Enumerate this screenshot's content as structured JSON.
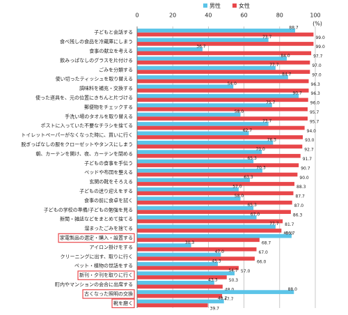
{
  "chart_data": {
    "type": "hbar",
    "unit_label": "(%)",
    "categories": [
      "子どもと会話する",
      "食べ残しの食品を冷蔵庫にしまう",
      "食事の献立を考える",
      "飲みっぱなしのグラスを片付ける",
      "ごみを分類する",
      "使い切ったティッシュを取り替える",
      "調味料を補充・交換する",
      "使った道具を、元の位置にきちんと片づける",
      "郵便物をチェックする",
      "手洗い場のタオルを取り替える",
      "ポストに入っていた不要なチラシを捨てる",
      "トイレットペーパーがなくなった時に、買いに行く",
      "脱ぎっぱなしの服をクローゼットやタンスにしまう",
      "朝、カーテンを開け、夜、カーテンを閉める",
      "子どもの食事を手伝う",
      "ベッドや布団を整える",
      "玄関の靴をそろえる",
      "子どもの送り迎えをする",
      "食事の前に食卓を拭く",
      "子どもの学校の準備/子どもの勉強を見る",
      "新聞・雑誌などをまとめて捨てる",
      "溜まったごみを捨てる",
      "家電製品の選定・購入・設置する",
      "アイロン掛けをする",
      "クリーニングに出す、取りに行く",
      "ペット・植物の世話をする",
      "新刊・夕刊を取りに行く",
      "町内やマンションの会合に出席する",
      "古くなった照明の交換",
      "靴を磨く"
    ],
    "highlighted_categories": [
      22,
      26,
      28,
      29
    ],
    "highlight_color": "#e8474a",
    "series": [
      {
        "name": "男性",
        "color": "#5bc4e8",
        "values": [
          88.7,
          73.7,
          36.7,
          84.0,
          77.7,
          84.7,
          54.0,
          90.7,
          75.7,
          58.0,
          73.7,
          62.7,
          76.3,
          70.0,
          65.3,
          70.3,
          63.3,
          57.0,
          58.0,
          65.3,
          67.0,
          77.7,
          86.7,
          30.3,
          47.0,
          45.3,
          54.7,
          43.3,
          88.0,
          48.7
        ],
        "value_labels": [
          "88.7",
          "73.7",
          "36.7",
          "84.0",
          "77.7",
          "84.7",
          "54.0",
          "90.7",
          "75.7",
          "58.0",
          "73.7",
          "62.7",
          "76.3",
          "70.0",
          "65.3",
          "70.3",
          "63.3",
          "57.0",
          "58.0",
          "65.3",
          "67.0",
          "77.7",
          "86.7",
          "30.3",
          "47.0",
          "45.3",
          "54.7",
          "43.3",
          "88.0",
          "48.7"
        ]
      },
      {
        "name": "女性",
        "color": "#e8474a",
        "values": [
          99.0,
          99.0,
          97.7,
          97.0,
          97.0,
          96.3,
          96.3,
          96.0,
          95.7,
          95.7,
          94.0,
          93.0,
          92.7,
          91.7,
          90.7,
          90.0,
          88.3,
          87.7,
          87.0,
          86.3,
          81.7,
          81.0,
          68.7,
          67.0,
          66.0,
          57.0,
          50.3,
          48.0,
          47.7,
          39.7
        ],
        "value_labels": [
          "99.0",
          "99.0",
          "97.7",
          "97.0",
          "97.0",
          "96.3",
          "96.3",
          "96.0",
          "95.7",
          "95.7",
          "94.0",
          "93.0",
          "92.7",
          "91.7",
          "90.7",
          "90.0",
          "88.3",
          "87.7",
          "87.0",
          "86.3",
          "81.7",
          "81.0",
          "68.7",
          "67.0",
          "66.0",
          "57.0",
          "50.3",
          "48.0",
          "47.7",
          "39.7"
        ]
      }
    ],
    "xlim": [
      0,
      100
    ],
    "xticks": [
      0,
      20,
      40,
      60,
      80,
      100
    ],
    "grid": true
  }
}
